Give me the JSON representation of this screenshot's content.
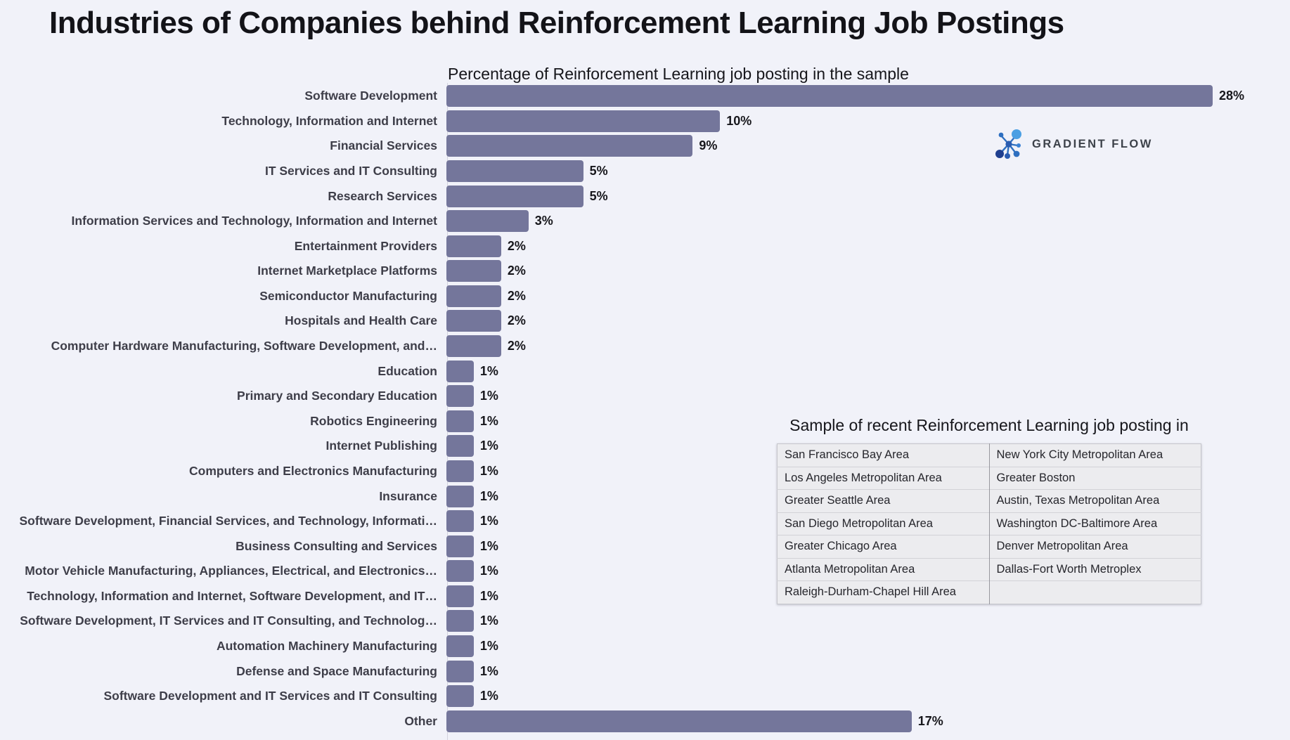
{
  "page": {
    "title": "Industries of Companies behind Reinforcement Learning Job Postings"
  },
  "chart_data": {
    "type": "bar",
    "orientation": "horizontal",
    "title": "Percentage of Reinforcement Learning job posting in the sample",
    "categories": [
      "Software Development",
      "Technology, Information and Internet",
      "Financial Services",
      "IT Services and IT Consulting",
      "Research Services",
      "Information Services and Technology, Information and Internet",
      "Entertainment Providers",
      "Internet Marketplace Platforms",
      "Semiconductor Manufacturing",
      "Hospitals and Health Care",
      "Computer Hardware Manufacturing, Software Development, and…",
      "Education",
      "Primary and Secondary Education",
      "Robotics Engineering",
      "Internet Publishing",
      "Computers and Electronics Manufacturing",
      "Insurance",
      "Software Development, Financial Services, and Technology, Informati…",
      "Business Consulting and Services",
      "Motor Vehicle Manufacturing, Appliances, Electrical, and Electronics…",
      "Technology, Information and Internet, Software Development, and IT…",
      "Software Development, IT Services and IT Consulting, and Technolog…",
      "Automation Machinery Manufacturing",
      "Defense and Space Manufacturing",
      "Software Development and IT Services and IT Consulting",
      "Other"
    ],
    "values": [
      28,
      10,
      9,
      5,
      5,
      3,
      2,
      2,
      2,
      2,
      2,
      1,
      1,
      1,
      1,
      1,
      1,
      1,
      1,
      1,
      1,
      1,
      1,
      1,
      1,
      17
    ],
    "value_labels": [
      "28%",
      "10%",
      "9%",
      "5%",
      "5%",
      "3%",
      "2%",
      "2%",
      "2%",
      "2%",
      "2%",
      "1%",
      "1%",
      "1%",
      "1%",
      "1%",
      "1%",
      "1%",
      "1%",
      "1%",
      "1%",
      "1%",
      "1%",
      "1%",
      "1%",
      "17%"
    ],
    "xlim": [
      0,
      28
    ],
    "bar_color": "#74769B",
    "grid": false,
    "legend": "none"
  },
  "logo": {
    "text": "GRADIENT FLOW",
    "icon_colors": {
      "dark": "#1f3f8f",
      "mid": "#2e6fc0",
      "light": "#4b9fe3"
    }
  },
  "table": {
    "title": "Sample of recent Reinforcement Learning job posting in",
    "rows": [
      [
        "San Francisco Bay Area",
        "New York City Metropolitan Area"
      ],
      [
        "Los Angeles Metropolitan Area",
        "Greater Boston"
      ],
      [
        "Greater Seattle Area",
        "Austin, Texas Metropolitan Area"
      ],
      [
        "San Diego Metropolitan Area",
        "Washington DC-Baltimore Area"
      ],
      [
        "Greater Chicago Area",
        "Denver Metropolitan Area"
      ],
      [
        "Atlanta Metropolitan Area",
        "Dallas-Fort Worth Metroplex"
      ],
      [
        "Raleigh-Durham-Chapel Hill Area",
        ""
      ]
    ]
  }
}
